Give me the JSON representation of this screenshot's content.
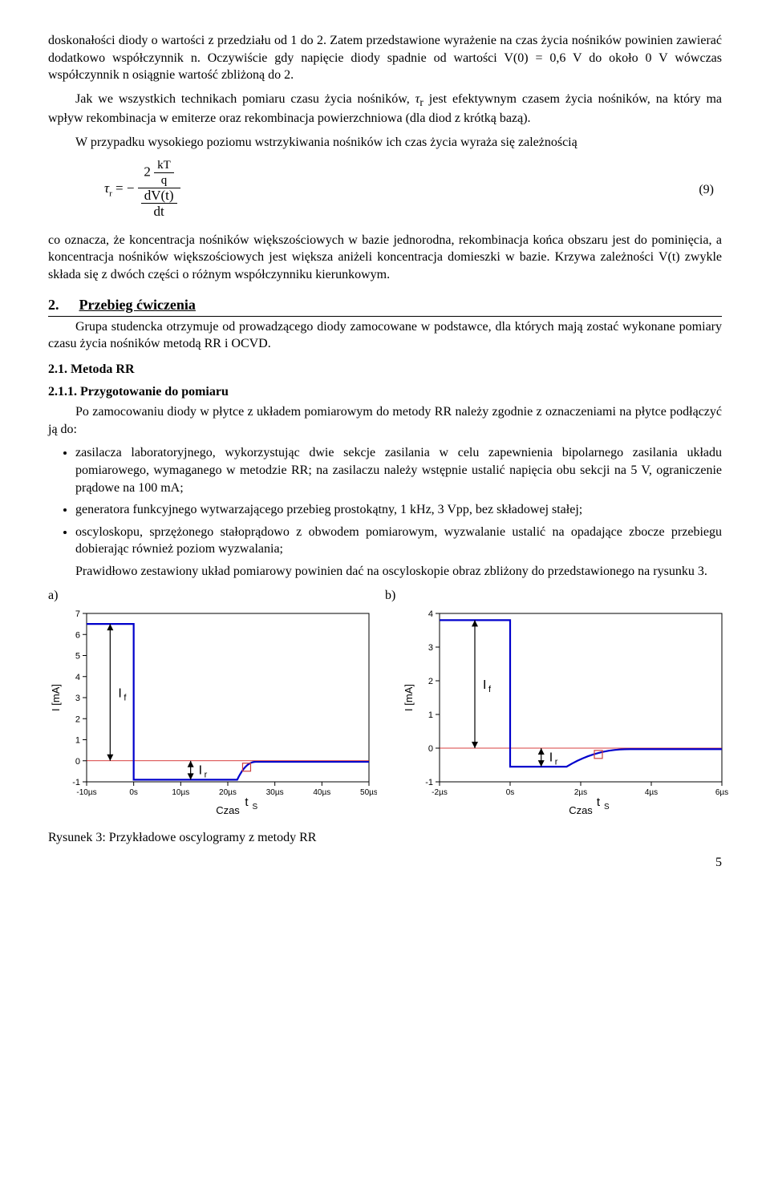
{
  "para1": "doskonałości diody o wartości z przedziału od 1 do 2. Zatem przedstawione wyrażenie na czas życia nośników powinien zawierać dodatkowo współczynnik n. Oczywiście gdy napięcie diody spadnie od wartości V(0) = 0,6 V do około 0 V wówczas współczynnik n osiągnie wartość zbliżoną do 2.",
  "para2a": "Jak we wszystkich technikach pomiaru czasu życia nośników, ",
  "para2_tau": "τ",
  "para2_sub": "r",
  "para2b": " jest efektywnym czasem życia nośników, na który ma wpływ rekombinacja w emiterze oraz rekombinacja powierzchniowa (dla diod z krótką bazą).",
  "para3": "W przypadku wysokiego poziomu wstrzykiwania nośników ich czas życia wyraża się zależnością",
  "eq9": {
    "lhs_sym": "τ",
    "lhs_sub": "r",
    "after_lhs": " = −",
    "top_num_pre": "2",
    "kt_num": "kT",
    "kt_den": "q",
    "den_top": "dV(t)",
    "den_bot": "dt",
    "num": "(9)"
  },
  "para4": "co oznacza, że koncentracja nośników większościowych w bazie jednorodna, rekombinacja końca obszaru jest do pominięcia, a koncentracja nośników większościowych jest większa aniżeli koncentracja domieszki w bazie. Krzywa zależności V(t) zwykle składa się z dwóch części o różnym współczynniku kierunkowym.",
  "sec2_num": "2.",
  "sec2_title": "Przebieg ćwiczenia",
  "sec2_intro": "Grupa studencka otrzymuje od prowadzącego diody zamocowane w podstawce, dla których mają zostać wykonane pomiary czasu życia nośników metodą RR i OCVD.",
  "sub21": "2.1.   Metoda RR",
  "sub211": "2.1.1.  Przygotowanie do pomiaru",
  "para5": "Po zamocowaniu diody w płytce z układem pomiarowym do metody RR należy zgodnie z oznaczeniami na płytce podłączyć ją do:",
  "bullets": [
    "zasilacza laboratoryjnego, wykorzystując dwie sekcje zasilania w celu zapewnienia bipolarnego zasilania układu pomiarowego, wymaganego w metodzie RR; na zasilaczu należy wstępnie ustalić napięcia obu sekcji na 5 V, ograniczenie prądowe na 100 mA;",
    "generatora funkcyjnego wytwarzającego przebieg prostokątny, 1 kHz, 3 Vpp, bez składowej stałej;",
    "oscyloskopu, sprzężonego stałoprądowo z obwodem pomiarowym, wyzwalanie ustalić na opadające zbocze przebiegu dobierając również poziom wyzwalania;"
  ],
  "para6": "Prawidłowo zestawiony układ pomiarowy powinien dać na oscyloskopie obraz zbliżony do przedstawionego na rysunku 3.",
  "lbl_a": "a)",
  "lbl_b": "b)",
  "caption": "Rysunek 3: Przykładowe oscylogramy z metody RR",
  "pagenum": "5",
  "chart_a": {
    "y_label": "I [mA]",
    "x_label": "Czas",
    "y_min": -1,
    "y_max": 7,
    "y_ticks": [
      -1,
      0,
      1,
      2,
      3,
      4,
      5,
      6,
      7
    ],
    "x_ticks": [
      "-10µs",
      "0s",
      "10µs",
      "20µs",
      "30µs",
      "40µs",
      "50µs"
    ],
    "x_vals": [
      -10,
      0,
      10,
      20,
      30,
      40,
      50
    ],
    "x_min": -10,
    "x_max": 50,
    "colors": {
      "trace": "#0000cc",
      "zero": "#cc0000",
      "arrow": "#000000",
      "tick": "#000000",
      "text": "#000000",
      "marker_box": "#cc4040"
    },
    "ts_label": "tS",
    "If_label": "If",
    "Ir_label": "Ir",
    "high": 6.5,
    "low": -0.9,
    "settle": -0.05,
    "t_drop": 0,
    "t_rise_start": 22,
    "t_rise_end": 26,
    "marker_x": 24
  },
  "chart_b": {
    "y_label": "I [mA]",
    "x_label": "Czas",
    "y_min": -1,
    "y_max": 4,
    "y_ticks": [
      -1,
      0,
      1,
      2,
      3,
      4
    ],
    "x_ticks": [
      "-2µs",
      "0s",
      "2µs",
      "4µs",
      "6µs"
    ],
    "x_vals": [
      -2,
      0,
      2,
      4,
      6
    ],
    "x_min": -2,
    "x_max": 6,
    "colors": {
      "trace": "#0000cc",
      "zero": "#cc0000",
      "arrow": "#000000",
      "tick": "#000000",
      "text": "#000000",
      "marker_box": "#cc4040"
    },
    "ts_label": "tS",
    "If_label": "If",
    "Ir_label": "Ir",
    "high": 3.8,
    "low": -0.55,
    "settle": -0.03,
    "t_drop": 0,
    "t_rise_start": 1.6,
    "t_rise_end": 3.4,
    "marker_x": 2.5
  }
}
